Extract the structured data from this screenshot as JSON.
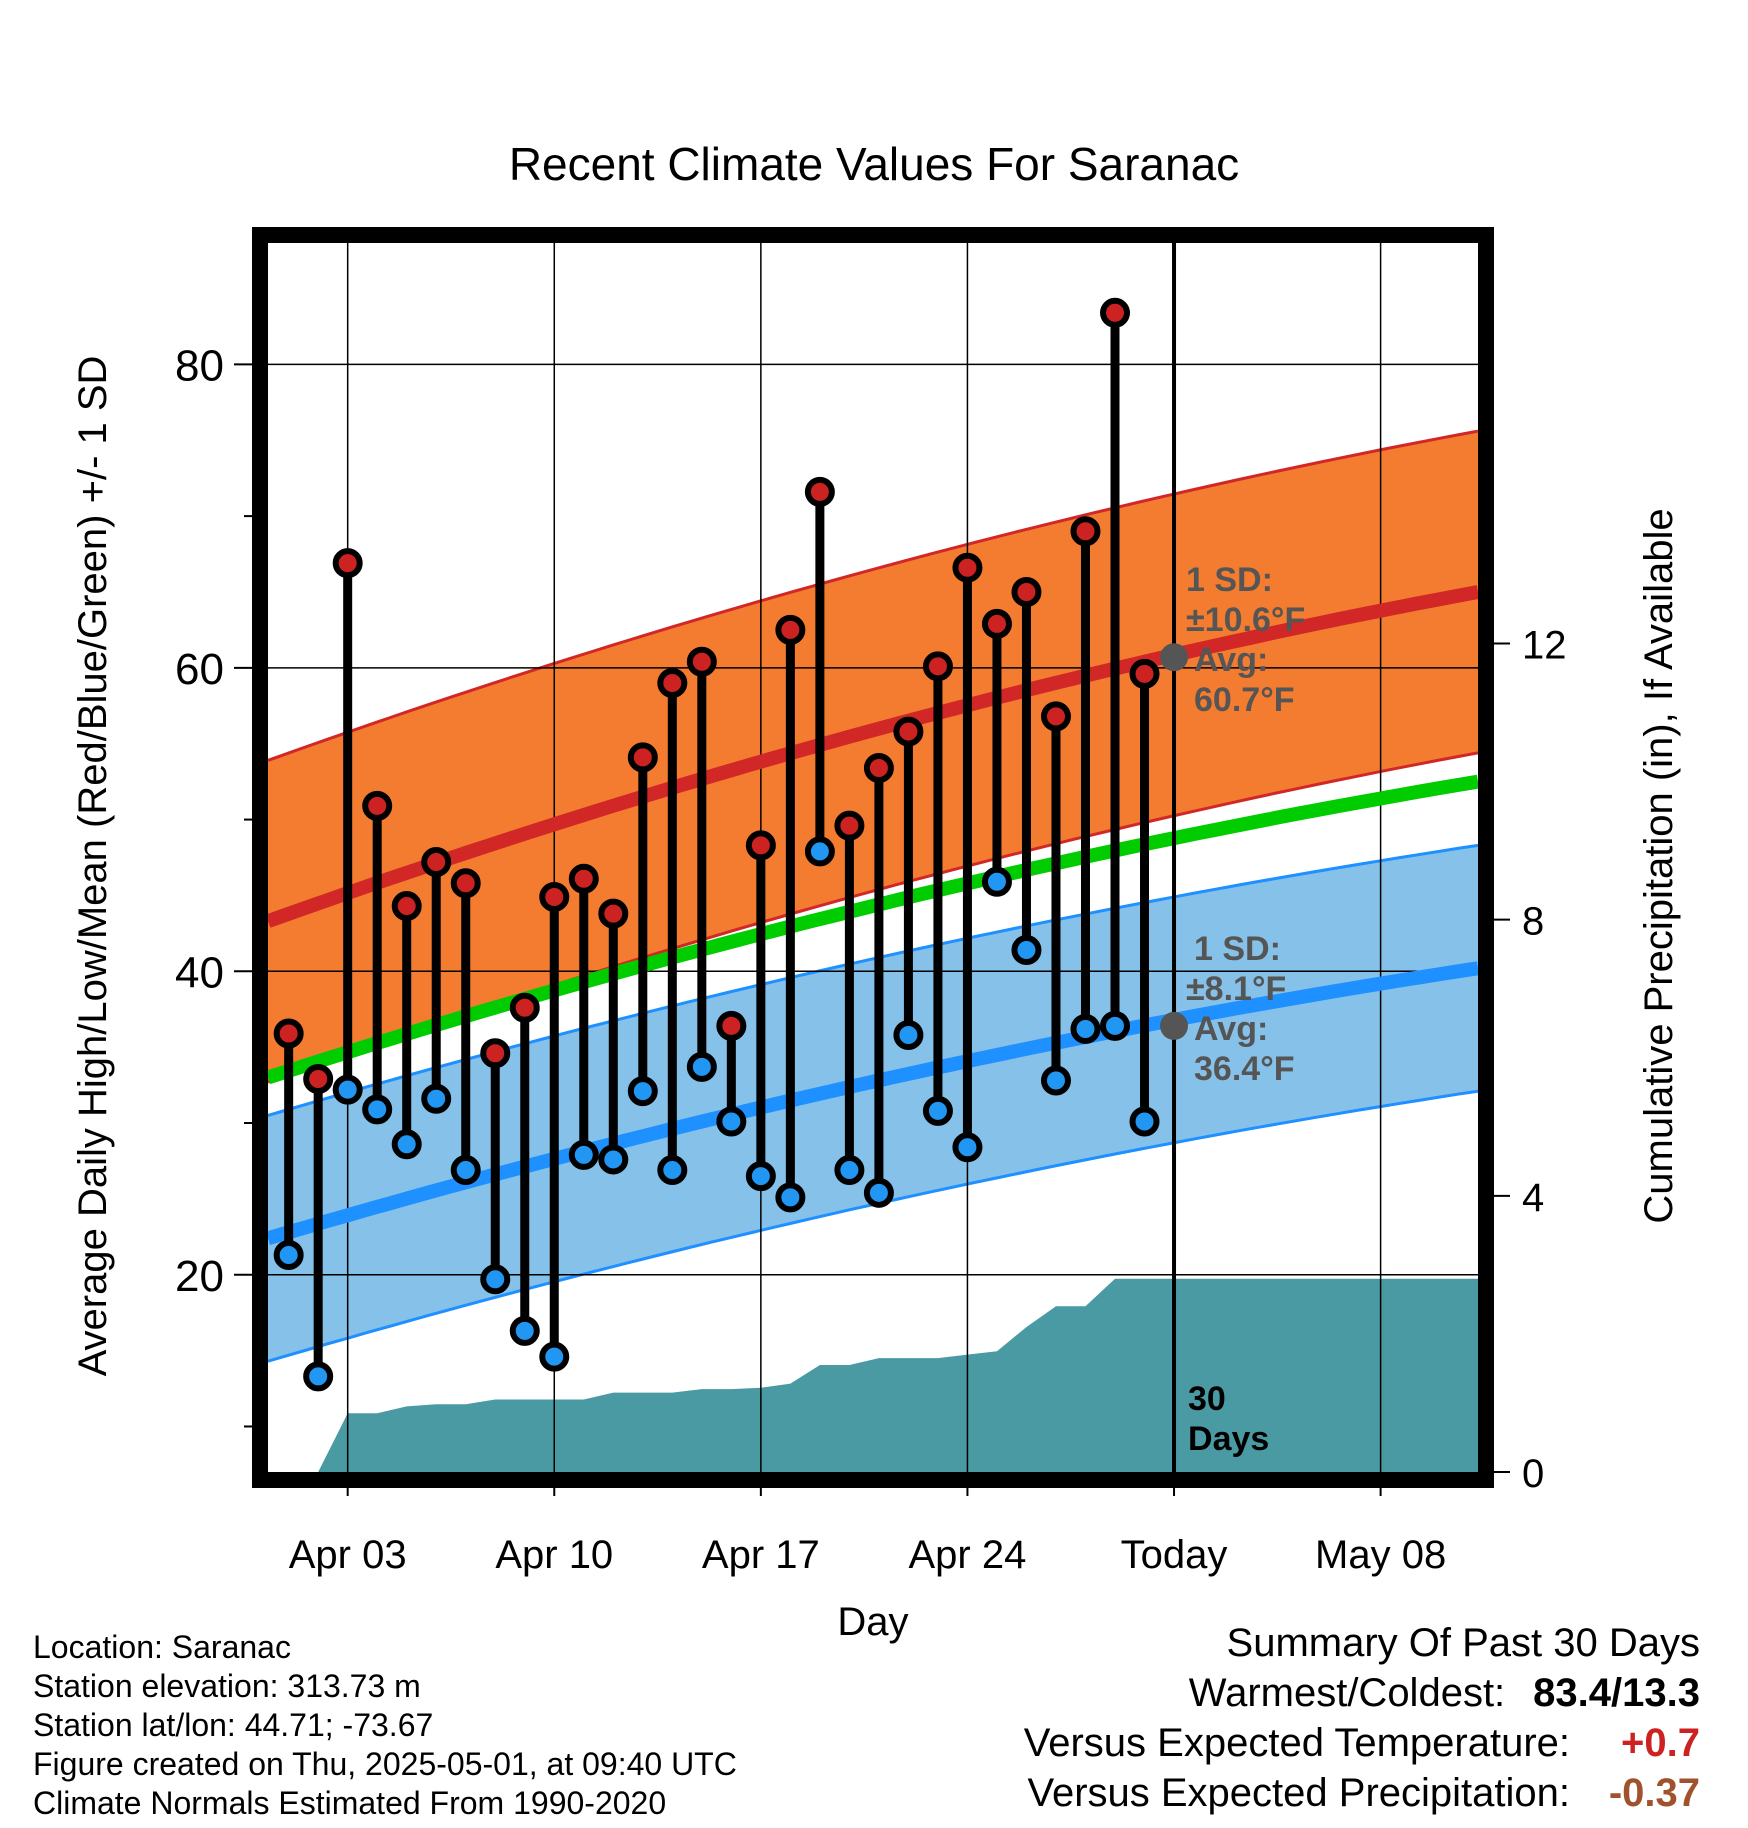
{
  "chart_data": {
    "type": "line",
    "title": "Recent Climate Values For Saranac",
    "xlabel": "Day",
    "ylabel": "Average Daily High/Low/Mean (Red/Blue/Green) +/- 1 SD",
    "y2label": "Cumulative Precipitation (in), If Available",
    "x_tick_labels": [
      "Apr 03",
      "Apr 10",
      "Apr 17",
      "Apr 24",
      "Today",
      "May 08"
    ],
    "x_tick_days": [
      3,
      10,
      17,
      24,
      31,
      38
    ],
    "xlim_days": [
      0.3,
      41.3
    ],
    "ylim": [
      7,
      88
    ],
    "y_ticks": [
      20,
      40,
      60,
      80
    ],
    "y2lim": [
      0,
      17.8
    ],
    "y2_ticks": [
      0,
      4,
      8,
      12
    ],
    "today_day": 31,
    "today_annotation": "30 Days",
    "days": [
      1,
      2,
      3,
      4,
      5,
      6,
      7,
      8,
      9,
      10,
      11,
      12,
      13,
      14,
      15,
      16,
      17,
      18,
      19,
      20,
      21,
      22,
      23,
      24,
      25,
      26,
      27,
      28,
      29,
      30
    ],
    "observed_high": [
      35.9,
      32.9,
      66.9,
      50.9,
      44.3,
      47.2,
      45.8,
      34.6,
      37.6,
      44.9,
      46.1,
      43.8,
      54.1,
      59.0,
      60.4,
      36.4,
      48.3,
      62.5,
      71.6,
      49.6,
      53.4,
      55.8,
      60.1,
      66.6,
      62.9,
      65.0,
      56.8,
      69.0,
      83.4,
      59.6
    ],
    "observed_low": [
      21.3,
      13.3,
      32.2,
      30.9,
      28.6,
      31.6,
      26.9,
      19.7,
      16.3,
      14.6,
      27.9,
      27.6,
      32.1,
      26.9,
      33.7,
      30.1,
      26.5,
      25.1,
      47.9,
      26.9,
      25.4,
      35.8,
      30.8,
      28.4,
      45.9,
      41.4,
      32.8,
      36.2,
      36.4,
      30.1
    ],
    "normal_high": {
      "start": 43.3,
      "end": 65.0,
      "today_value": 60.7,
      "sd": 10.6
    },
    "normal_low": {
      "start": 22.4,
      "end": 40.2,
      "today_value": 36.4,
      "sd": 8.1
    },
    "normal_mean": {
      "start": 33.0,
      "end": 52.5
    },
    "precip_cumulative": {
      "days": [
        1,
        2,
        3,
        4,
        5,
        6,
        7,
        8,
        9,
        10,
        11,
        12,
        13,
        14,
        15,
        16,
        17,
        18,
        19,
        20,
        21,
        22,
        23,
        24,
        25,
        26,
        27,
        28,
        29,
        30,
        31,
        41.3
      ],
      "values": [
        0,
        0,
        0.85,
        0.85,
        0.95,
        0.98,
        0.98,
        1.05,
        1.05,
        1.05,
        1.05,
        1.15,
        1.15,
        1.15,
        1.2,
        1.2,
        1.22,
        1.28,
        1.55,
        1.55,
        1.65,
        1.65,
        1.65,
        1.7,
        1.75,
        2.1,
        2.4,
        2.4,
        2.8,
        2.8,
        2.8,
        2.8
      ]
    },
    "annotations": {
      "high_sd_label": "1 SD:",
      "high_sd_value": "±10.6°F",
      "high_avg_label": "Avg:",
      "high_avg_value": "60.7°F",
      "low_sd_label": "1 SD:",
      "low_sd_value": "±8.1°F",
      "low_avg_label": "Avg:",
      "low_avg_value": "36.4°F"
    },
    "colors": {
      "high_band": "#f47c30",
      "high_line": "#d22727",
      "low_band": "#85c1e9",
      "low_line": "#1e90ff",
      "mean_line": "#00cc00",
      "precip": "#4a9aa4",
      "high_marker": "#cc2222",
      "low_marker": "#2196f3",
      "annotation": "#555555",
      "today_marker": "#555555"
    },
    "grid": true,
    "legend": "none"
  },
  "footer": {
    "location": "Location: Saranac",
    "elevation": "Station elevation: 313.73 m",
    "latlon": "Station lat/lon: 44.71; -73.67",
    "created": "Figure created on Thu, 2025-05-01, at 09:40 UTC",
    "normals": "Climate Normals Estimated From 1990-2020"
  },
  "summary": {
    "title": "Summary Of Past 30 Days",
    "warm_cold_label": "Warmest/Coldest:",
    "warm_cold_value": "83.4/13.3",
    "temp_label": "Versus Expected Temperature:",
    "temp_value": "+0.7",
    "temp_color": "#cc2222",
    "precip_label": "Versus Expected Precipitation:",
    "precip_value": "-0.37",
    "precip_color": "#a0522d"
  }
}
